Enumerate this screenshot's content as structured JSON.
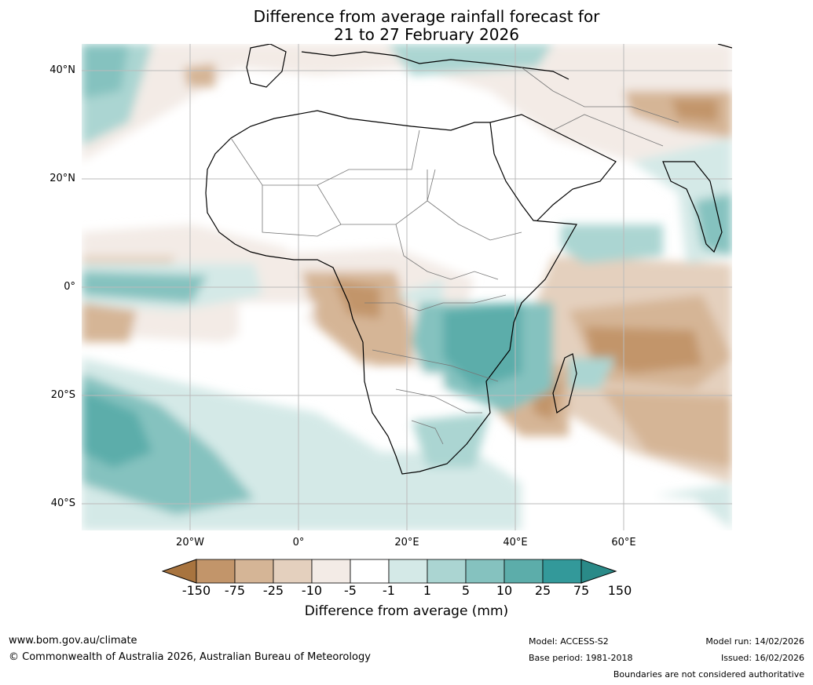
{
  "title": {
    "line1": "Difference from average rainfall forecast for",
    "line2": "21 to 27 February 2026"
  },
  "map": {
    "lat_labels": [
      "40°N",
      "20°N",
      "0°",
      "20°S",
      "40°S"
    ],
    "lon_labels": [
      "20°W",
      "0°",
      "20°E",
      "40°E",
      "60°E"
    ],
    "extent": {
      "lon": [
        -40,
        80
      ],
      "lat": [
        -45,
        45
      ]
    }
  },
  "colorbar": {
    "ticks": [
      "-150",
      "-75",
      "-25",
      "-10",
      "-5",
      "-1",
      "1",
      "5",
      "10",
      "25",
      "75",
      "150"
    ],
    "colors": [
      "#a8743f",
      "#c2956a",
      "#d5b596",
      "#e4d0be",
      "#f3ebe6",
      "#ffffff",
      "#d4e9e7",
      "#abd5d2",
      "#85c2bf",
      "#5cadaa",
      "#33999a",
      "#2a8a88"
    ],
    "label": "Difference from average (mm)"
  },
  "footer": {
    "website": "www.bom.gov.au/climate",
    "copyright": "© Commonwealth of Australia 2026, Australian Bureau of Meteorology",
    "model": "Model: ACCESS-S2",
    "base_period": "Base period: 1981-2018",
    "model_run": "Model run: 14/02/2026",
    "issued": "Issued: 16/02/2026",
    "disclaimer": "Boundaries are not considered authoritative"
  }
}
